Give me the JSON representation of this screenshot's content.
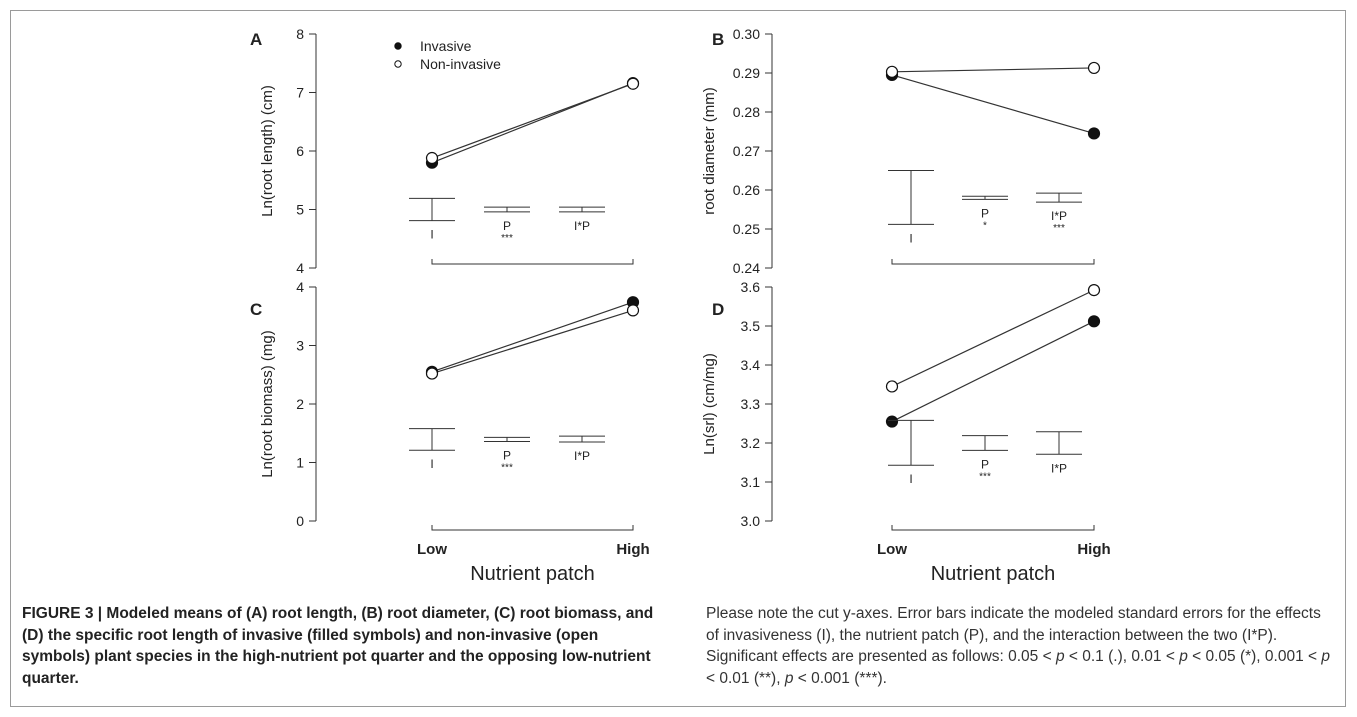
{
  "chart_data": [
    {
      "type": "line",
      "panel": "A",
      "ylabel": "Ln(root length) (cm)",
      "ylim": [
        4,
        8
      ],
      "yticks": [
        "4",
        "5",
        "6",
        "7",
        "8"
      ],
      "categories": [
        "Low",
        "High"
      ],
      "series": [
        {
          "name": "Invasive",
          "marker": "filled",
          "values": [
            5.8,
            7.16
          ]
        },
        {
          "name": "Non-invasive",
          "marker": "open",
          "values": [
            5.88,
            7.15
          ]
        }
      ],
      "error_bars": [
        {
          "label": "I",
          "low": 4.81,
          "high": 5.19,
          "sig": ""
        },
        {
          "label": "P",
          "low": 4.96,
          "high": 5.04,
          "sig": "***"
        },
        {
          "label": "I*P",
          "low": 4.96,
          "high": 5.04,
          "sig": ""
        }
      ],
      "legend": {
        "placement": "top",
        "entries": [
          "Invasive",
          "Non-invasive"
        ]
      }
    },
    {
      "type": "line",
      "panel": "B",
      "ylabel": "root diameter (mm)",
      "ylim": [
        0.24,
        0.3
      ],
      "yticks": [
        "0.24",
        "0.25",
        "0.26",
        "0.27",
        "0.28",
        "0.29",
        "0.30"
      ],
      "categories": [
        "Low",
        "High"
      ],
      "series": [
        {
          "name": "Invasive",
          "marker": "filled",
          "values": [
            0.2895,
            0.2745
          ]
        },
        {
          "name": "Non-invasive",
          "marker": "open",
          "values": [
            0.2903,
            0.2913
          ]
        }
      ],
      "error_bars": [
        {
          "label": "I",
          "low": 0.2512,
          "high": 0.265,
          "sig": ""
        },
        {
          "label": "P",
          "low": 0.2576,
          "high": 0.2584,
          "sig": "*"
        },
        {
          "label": "I*P",
          "low": 0.2569,
          "high": 0.2592,
          "sig": "***"
        }
      ]
    },
    {
      "type": "line",
      "panel": "C",
      "ylabel": "Ln(root biomass) (mg)",
      "ylim": [
        0,
        4
      ],
      "yticks": [
        "0",
        "1",
        "2",
        "3",
        "4"
      ],
      "categories": [
        "Low",
        "High"
      ],
      "series": [
        {
          "name": "Invasive",
          "marker": "filled",
          "values": [
            2.55,
            3.74
          ]
        },
        {
          "name": "Non-invasive",
          "marker": "open",
          "values": [
            2.52,
            3.6
          ]
        }
      ],
      "error_bars": [
        {
          "label": "I",
          "low": 1.21,
          "high": 1.58,
          "sig": ""
        },
        {
          "label": "P",
          "low": 1.36,
          "high": 1.43,
          "sig": "***"
        },
        {
          "label": "I*P",
          "low": 1.35,
          "high": 1.45,
          "sig": ""
        }
      ],
      "xlabel": "Nutrient patch"
    },
    {
      "type": "line",
      "panel": "D",
      "ylabel": "Ln(srl) (cm/mg)",
      "ylim": [
        3.0,
        3.6
      ],
      "yticks": [
        "3.0",
        "3.1",
        "3.2",
        "3.3",
        "3.4",
        "3.5",
        "3.6"
      ],
      "categories": [
        "Low",
        "High"
      ],
      "series": [
        {
          "name": "Invasive",
          "marker": "filled",
          "values": [
            3.255,
            3.512
          ]
        },
        {
          "name": "Non-invasive",
          "marker": "open",
          "values": [
            3.345,
            3.592
          ]
        }
      ],
      "error_bars": [
        {
          "label": "I",
          "low": 3.143,
          "high": 3.258,
          "sig": ""
        },
        {
          "label": "P",
          "low": 3.181,
          "high": 3.219,
          "sig": "***"
        },
        {
          "label": "I*P",
          "low": 3.171,
          "high": 3.229,
          "sig": ""
        }
      ],
      "xlabel": "Nutrient patch"
    }
  ],
  "caption": {
    "left_bold": "FIGURE 3 | Modeled means of (A) root length, (B) root diameter, (C) root biomass, and (D) the specific root length of invasive (filled symbols) and non-invasive (open symbols) plant species in the high-nutrient pot quarter and the opposing low-nutrient quarter.",
    "right_1": "Please note the cut y-axes. Error bars indicate the modeled standard errors for the effects of invasiveness (I), the nutrient patch (P), and the interaction between the two (I*P). Significant effects are presented as follows: 0.05 < ",
    "p": "p",
    "right_2": " < 0.1 (.), 0.01 < ",
    "right_3": " < 0.05 (*), 0.001 < ",
    "right_4": " < 0.01 (**), ",
    "right_5": " < 0.001 (***)."
  }
}
